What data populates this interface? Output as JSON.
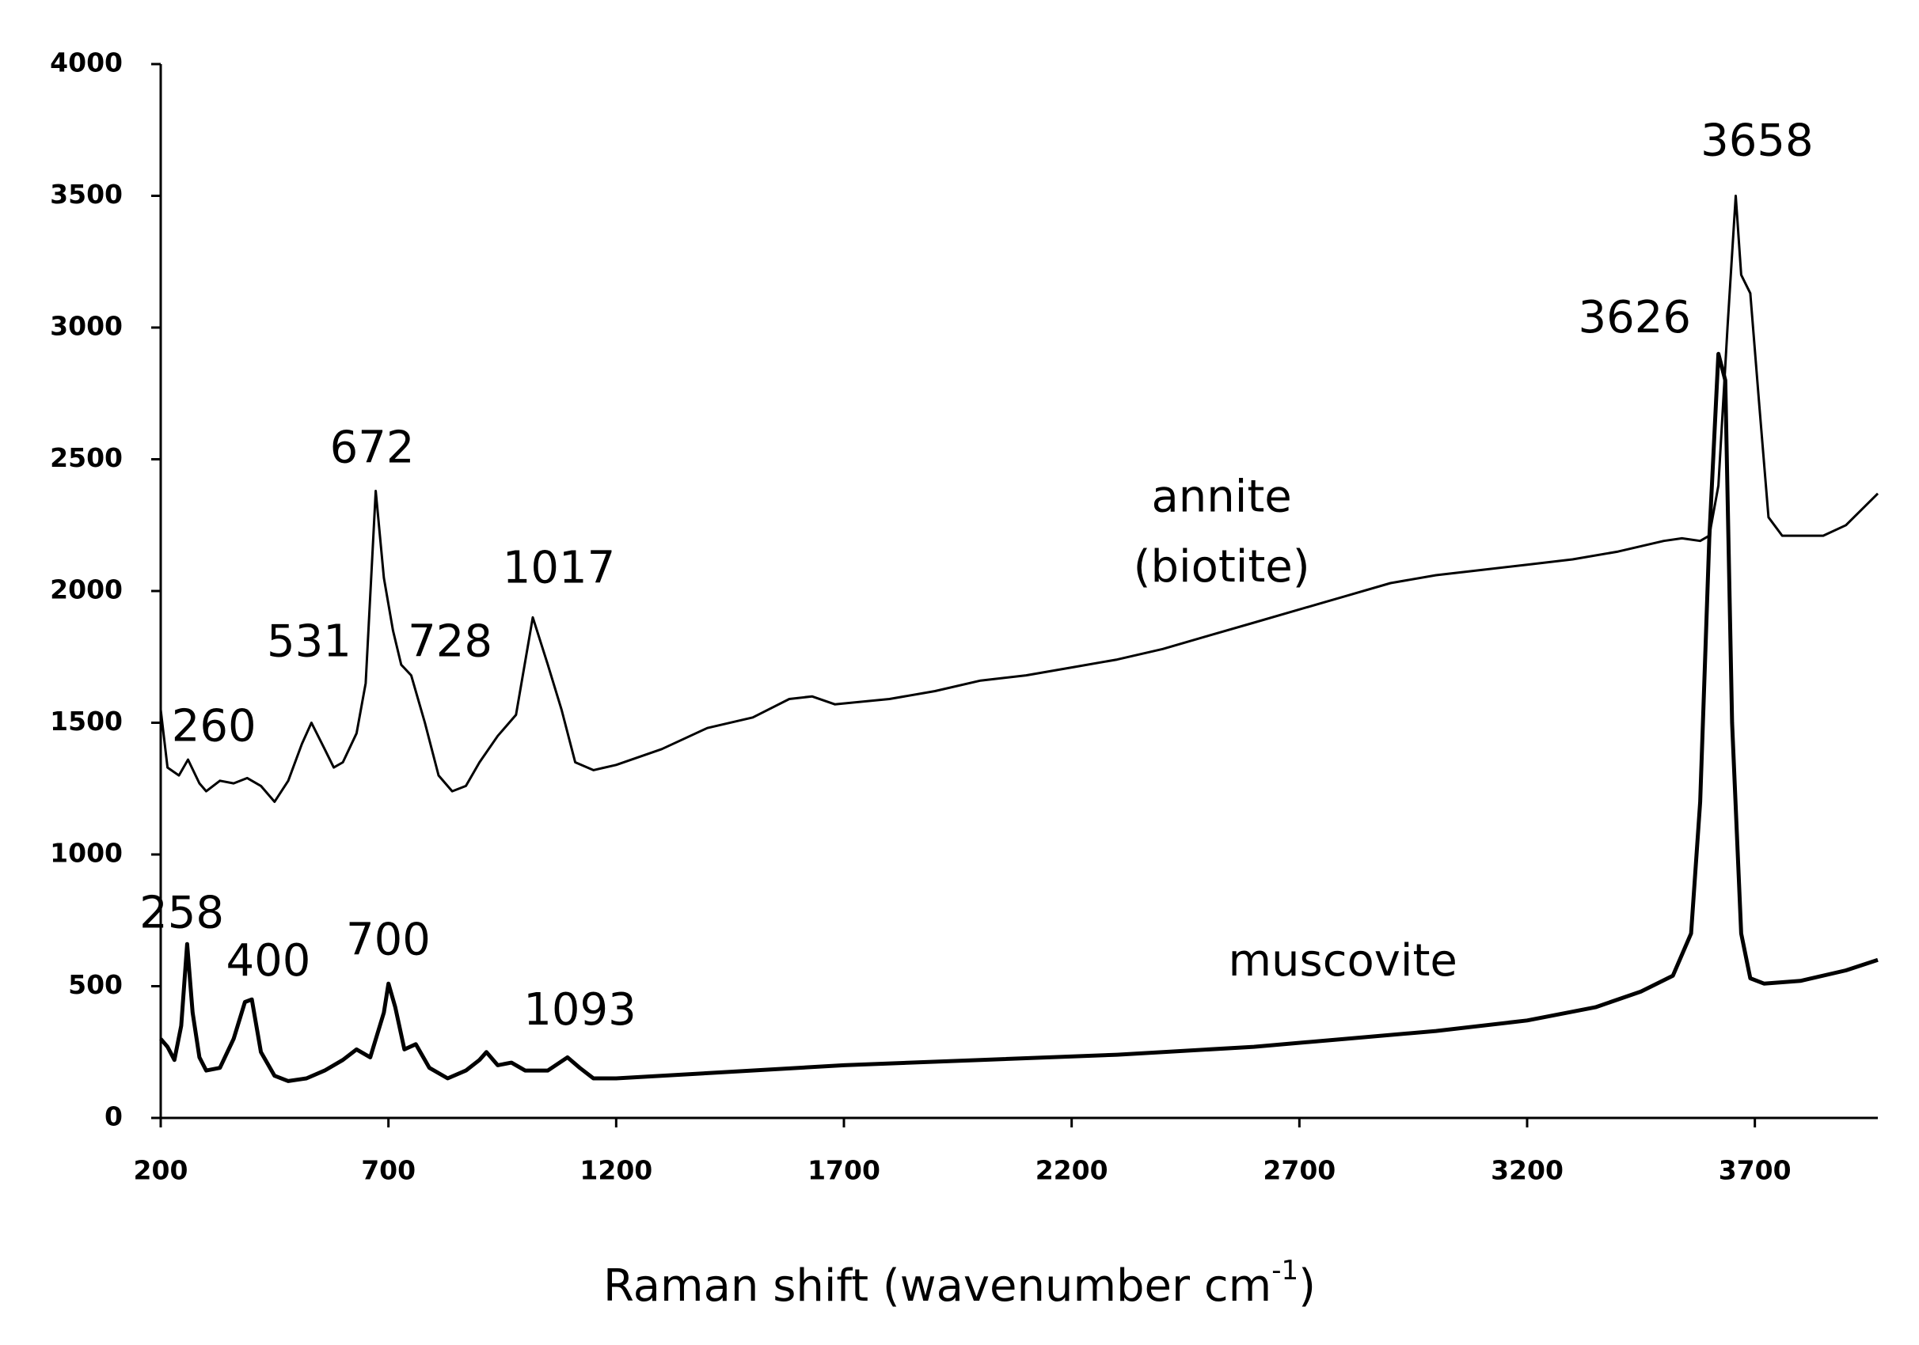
{
  "chart_data": {
    "type": "line",
    "xlabel": {
      "text": "Raman shift (wavenumber cm",
      "superscript": "-1",
      "suffix": ")"
    },
    "xlim": [
      200,
      3970
    ],
    "xticks": [
      200,
      700,
      1200,
      1700,
      2200,
      2700,
      3200,
      3700
    ],
    "ylim": [
      0,
      4000
    ],
    "yticks": [
      0,
      500,
      1000,
      1500,
      2000,
      2500,
      3000,
      3500,
      4000
    ],
    "grid": false,
    "series": [
      {
        "name": "annite",
        "color": "#000000",
        "x": [
          200,
          215,
          240,
          260,
          285,
          300,
          330,
          360,
          390,
          420,
          450,
          480,
          510,
          531,
          560,
          580,
          600,
          630,
          650,
          672,
          690,
          710,
          728,
          750,
          780,
          810,
          840,
          870,
          900,
          940,
          980,
          1017,
          1050,
          1080,
          1110,
          1150,
          1200,
          1300,
          1400,
          1500,
          1580,
          1630,
          1680,
          1800,
          1900,
          2000,
          2100,
          2200,
          2300,
          2400,
          2500,
          2600,
          2700,
          2800,
          2900,
          3000,
          3100,
          3200,
          3300,
          3400,
          3500,
          3540,
          3580,
          3600,
          3620,
          3640,
          3658,
          3670,
          3690,
          3710,
          3730,
          3760,
          3800,
          3850,
          3900,
          3970
        ],
        "values": [
          1550,
          1330,
          1300,
          1360,
          1270,
          1240,
          1280,
          1270,
          1290,
          1260,
          1200,
          1280,
          1420,
          1500,
          1400,
          1330,
          1350,
          1460,
          1650,
          2380,
          2050,
          1850,
          1720,
          1680,
          1500,
          1300,
          1240,
          1260,
          1350,
          1450,
          1530,
          1900,
          1720,
          1550,
          1350,
          1320,
          1340,
          1400,
          1480,
          1520,
          1590,
          1600,
          1570,
          1590,
          1620,
          1660,
          1680,
          1710,
          1740,
          1780,
          1830,
          1880,
          1930,
          1980,
          2030,
          2060,
          2080,
          2100,
          2120,
          2150,
          2190,
          2200,
          2190,
          2210,
          2400,
          3000,
          3500,
          3200,
          3130,
          2700,
          2280,
          2210,
          2210,
          2210,
          2250,
          2370
        ]
      },
      {
        "name": "muscovite",
        "color": "#000000",
        "x": [
          200,
          215,
          230,
          245,
          258,
          270,
          285,
          300,
          330,
          360,
          385,
          400,
          420,
          450,
          480,
          520,
          560,
          600,
          630,
          660,
          690,
          700,
          715,
          735,
          760,
          790,
          830,
          870,
          900,
          915,
          940,
          970,
          1000,
          1050,
          1093,
          1120,
          1150,
          1200,
          1400,
          1700,
          2000,
          2300,
          2600,
          2800,
          3000,
          3200,
          3350,
          3450,
          3520,
          3560,
          3580,
          3600,
          3620,
          3635,
          3650,
          3670,
          3690,
          3720,
          3800,
          3900,
          3970
        ],
        "values": [
          300,
          270,
          220,
          350,
          660,
          400,
          230,
          180,
          190,
          300,
          440,
          450,
          250,
          160,
          140,
          150,
          180,
          220,
          260,
          230,
          400,
          510,
          420,
          260,
          280,
          190,
          150,
          180,
          220,
          250,
          200,
          210,
          180,
          180,
          230,
          190,
          150,
          150,
          170,
          200,
          220,
          240,
          270,
          300,
          330,
          370,
          420,
          480,
          540,
          700,
          1200,
          2200,
          2900,
          2800,
          1500,
          700,
          530,
          510,
          520,
          560,
          600
        ]
      }
    ],
    "annotations": [
      "260",
      "531",
      "672",
      "728",
      "1017",
      "3626",
      "3658",
      "annite",
      "(biotite)",
      "258",
      "400",
      "700",
      "1093",
      "muscovite"
    ]
  }
}
